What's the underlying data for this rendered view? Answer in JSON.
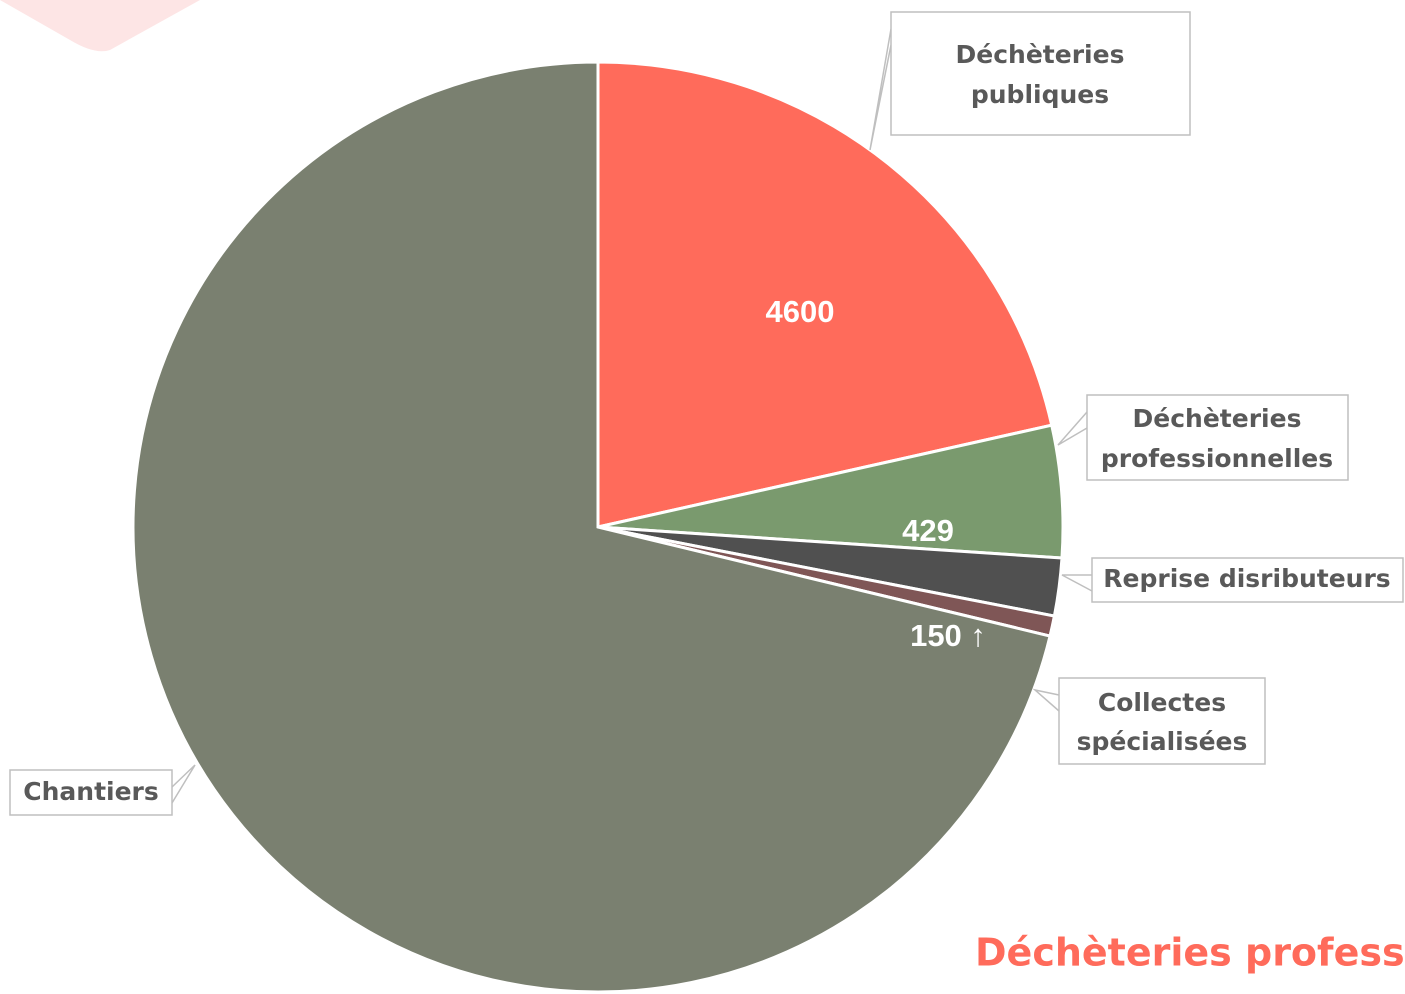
{
  "chart_data": {
    "type": "pie",
    "categories": [
      "Déchèteries publiques",
      "Déchèteries professionnelles",
      "Reprise disributeurs",
      "Collectes spécialisées",
      "Chantiers"
    ],
    "values": [
      4600,
      980,
      429,
      150,
      15250
    ],
    "value_labels": [
      "4600",
      null,
      "429",
      "150 ↑",
      null
    ],
    "colors": [
      "#ff6b5b",
      "#7a9a6e",
      "#505050",
      "#7f5656",
      "#7a8070"
    ],
    "annotation": "Déchèteries profess"
  }
}
